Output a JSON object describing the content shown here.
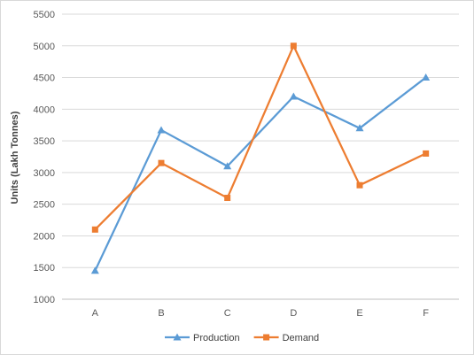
{
  "chart_data": {
    "type": "line",
    "title": "",
    "xlabel": "",
    "ylabel": "Units (Lakh Tonnes)",
    "categories": [
      "A",
      "B",
      "C",
      "D",
      "E",
      "F"
    ],
    "ylim": [
      1000,
      5500
    ],
    "yticks": [
      1000,
      1500,
      2000,
      2500,
      3000,
      3500,
      4000,
      4500,
      5000,
      5500
    ],
    "grid": true,
    "legend_position": "bottom",
    "series": [
      {
        "name": "Production",
        "values": [
          1450,
          3670,
          3100,
          4200,
          3700,
          4500
        ],
        "color": "#5b9bd5",
        "marker": "triangle"
      },
      {
        "name": "Demand",
        "values": [
          2100,
          3150,
          2600,
          5000,
          2800,
          3300
        ],
        "color": "#ed7d31",
        "marker": "square"
      }
    ]
  }
}
